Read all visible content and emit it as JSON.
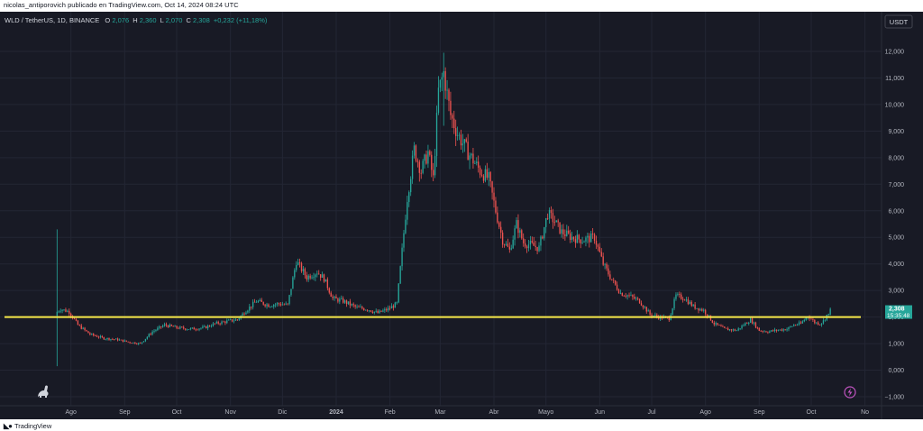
{
  "header": {
    "published_line": "nicolas_antiporovich publicado en TradingView.com, Oct 14, 2024 08:24 UTC"
  },
  "legend": {
    "symbol": "WLD / TetherUS, 1D, BINANCE",
    "o_label": "O",
    "o_value": "2,076",
    "h_label": "H",
    "h_value": "2,360",
    "l_label": "L",
    "l_value": "2,070",
    "c_label": "C",
    "c_value": "2,308",
    "change": "+0,232 (+11,18%)"
  },
  "currency_badge": "USDT",
  "price_badge": {
    "price": "2,308",
    "countdown": "15:35:48"
  },
  "footer": {
    "brand": "TradingView"
  },
  "colors": {
    "background": "#181a25",
    "up": "#26a69a",
    "down": "#ef5350",
    "level_line": "#f7e94a",
    "axis_text": "#b2b5be",
    "grid": "#232634"
  },
  "icons": {
    "left_tool": "dino-icon",
    "right_tool": "lightning-icon"
  },
  "chart_data": {
    "type": "candlestick",
    "y_axis": {
      "ticks": [
        "12,000",
        "11,000",
        "10,000",
        "9,000",
        "8,000",
        "7,000",
        "6,000",
        "5,000",
        "4,000",
        "3,000",
        "2,000",
        "1,000",
        "0,000",
        "−1,000"
      ],
      "range": [
        -1,
        12.5
      ]
    },
    "x_axis": {
      "labels": [
        "Ago",
        "Sep",
        "Oct",
        "Nov",
        "Dic",
        "2024",
        "Feb",
        "Mar",
        "Abr",
        "Mayo",
        "Jun",
        "Jul",
        "Ago",
        "Sep",
        "Oct",
        "No"
      ],
      "label_days": [
        0,
        31,
        61,
        92,
        122,
        153,
        184,
        213,
        244,
        274,
        305,
        335,
        366,
        397,
        427,
        458
      ],
      "first_candle_day": -8,
      "last_candle_day": 438,
      "range_days": [
        -17,
        466
      ]
    },
    "horizontal_line": {
      "price": 2.0
    },
    "path_points": [
      [
        -8,
        2.05
      ],
      [
        -7,
        2.2
      ],
      [
        -5,
        2.3
      ],
      [
        0,
        2.2
      ],
      [
        5,
        1.7
      ],
      [
        12,
        1.35
      ],
      [
        20,
        1.2
      ],
      [
        28,
        1.15
      ],
      [
        35,
        1.05
      ],
      [
        41,
        1.0
      ],
      [
        48,
        1.45
      ],
      [
        55,
        1.7
      ],
      [
        62,
        1.6
      ],
      [
        70,
        1.55
      ],
      [
        78,
        1.6
      ],
      [
        84,
        1.75
      ],
      [
        92,
        1.85
      ],
      [
        97,
        1.9
      ],
      [
        102,
        2.25
      ],
      [
        108,
        2.6
      ],
      [
        115,
        2.45
      ],
      [
        121,
        2.5
      ],
      [
        126,
        2.45
      ],
      [
        131,
        4.1
      ],
      [
        137,
        3.5
      ],
      [
        143,
        3.7
      ],
      [
        147,
        3.45
      ],
      [
        152,
        2.7
      ],
      [
        158,
        2.6
      ],
      [
        166,
        2.35
      ],
      [
        172,
        2.3
      ],
      [
        178,
        2.15
      ],
      [
        184,
        2.3
      ],
      [
        189,
        2.5
      ],
      [
        195,
        6.5
      ],
      [
        199,
        8.3
      ],
      [
        203,
        7.5
      ],
      [
        207,
        8.2
      ],
      [
        210,
        7.2
      ],
      [
        213,
        10.5
      ],
      [
        216,
        11.2
      ],
      [
        220,
        9.6
      ],
      [
        224,
        8.9
      ],
      [
        230,
        8.2
      ],
      [
        237,
        7.5
      ],
      [
        242,
        7.2
      ],
      [
        246,
        6.0
      ],
      [
        250,
        4.9
      ],
      [
        254,
        4.5
      ],
      [
        258,
        5.5
      ],
      [
        262,
        4.8
      ],
      [
        267,
        4.7
      ],
      [
        271,
        4.6
      ],
      [
        276,
        5.9
      ],
      [
        280,
        5.6
      ],
      [
        284,
        5.2
      ],
      [
        290,
        5.0
      ],
      [
        296,
        4.9
      ],
      [
        303,
        5.0
      ],
      [
        308,
        4.0
      ],
      [
        313,
        3.4
      ],
      [
        318,
        2.9
      ],
      [
        323,
        2.8
      ],
      [
        329,
        2.6
      ],
      [
        335,
        2.1
      ],
      [
        340,
        2.0
      ],
      [
        346,
        1.95
      ],
      [
        350,
        2.8
      ],
      [
        355,
        2.7
      ],
      [
        360,
        2.4
      ],
      [
        366,
        2.25
      ],
      [
        372,
        1.75
      ],
      [
        378,
        1.55
      ],
      [
        385,
        1.5
      ],
      [
        393,
        1.9
      ],
      [
        398,
        1.5
      ],
      [
        403,
        1.45
      ],
      [
        408,
        1.5
      ],
      [
        414,
        1.55
      ],
      [
        418,
        1.7
      ],
      [
        422,
        1.75
      ],
      [
        426,
        2.05
      ],
      [
        430,
        1.8
      ],
      [
        433,
        1.75
      ],
      [
        435,
        1.85
      ],
      [
        437,
        2.076
      ]
    ],
    "last_candle": {
      "open": 2.076,
      "high": 2.36,
      "low": 2.07,
      "close": 2.308
    },
    "wick_events": [
      {
        "day": -8,
        "high": 5.3,
        "low": 0.15
      },
      {
        "day": 215,
        "high": 11.95,
        "low": 9.2
      }
    ]
  }
}
